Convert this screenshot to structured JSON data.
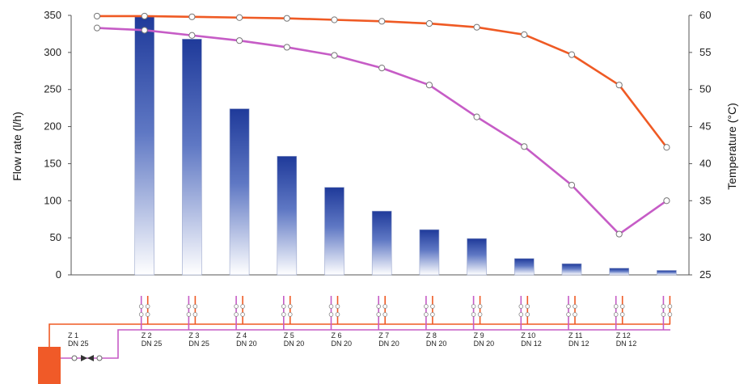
{
  "chart_data": {
    "type": "bar",
    "categories": [
      "Z 1",
      "Z 2",
      "Z 3",
      "Z 4",
      "Z 5",
      "Z 6",
      "Z 7",
      "Z 8",
      "Z 9",
      "Z 10",
      "Z 11",
      "Z 12"
    ],
    "pipe_sizes": [
      "DN 25",
      "DN 25",
      "DN 25",
      "DN 20",
      "DN 20",
      "DN 20",
      "DN 20",
      "DN 20",
      "DN 20",
      "DN 12",
      "DN 12",
      "DN 12"
    ],
    "ylabel": "Flow rate (l/h)",
    "y2label": "Temperature (°C)",
    "ylim": [
      0,
      350
    ],
    "y2lim": [
      25,
      60
    ],
    "yticks": [
      "0",
      "50",
      "100",
      "150",
      "200",
      "250",
      "300",
      "350"
    ],
    "y2ticks": [
      "25",
      "30",
      "35",
      "40",
      "45",
      "50",
      "55",
      "60"
    ],
    "grid": false,
    "bar_series": {
      "values": [
        null,
        348,
        318,
        224,
        160,
        118,
        86,
        61,
        49,
        22,
        15,
        9,
        6
      ],
      "color_top": "#1f3a9a",
      "color_bottom": "#ffffff"
    },
    "line_series": [
      {
        "color": "#ef5a24",
        "values": [
          59.9,
          59.9,
          59.8,
          59.7,
          59.6,
          59.4,
          59.2,
          58.9,
          58.4,
          57.4,
          54.7,
          50.6,
          42.2
        ]
      },
      {
        "color": "#c65cc6",
        "values": [
          58.3,
          58.0,
          57.3,
          56.6,
          55.7,
          54.6,
          52.9,
          50.6,
          46.3,
          42.3,
          37.1,
          30.5,
          35.0
        ]
      }
    ]
  },
  "diagram": {
    "boiler_color": "#f05a28",
    "flow_pipe_color": "#ef5a24",
    "return_pipe_color": "#c65cc6"
  }
}
